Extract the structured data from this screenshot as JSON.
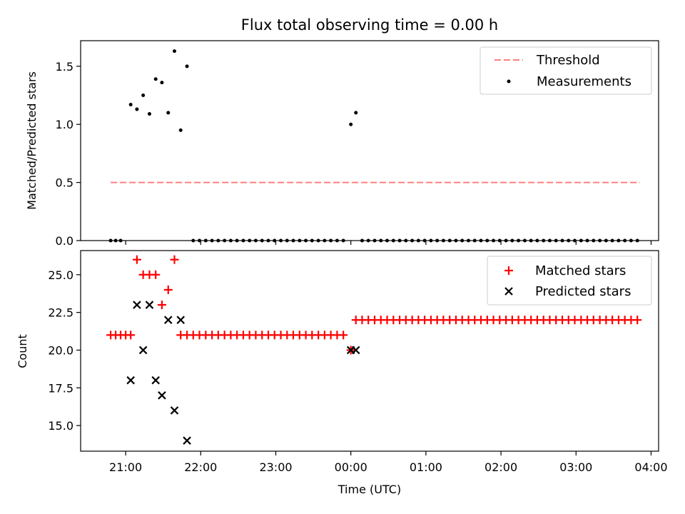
{
  "chart_data": [
    {
      "type": "scatter",
      "title": "Flux total observing time = 0.00 h",
      "xlabel": "",
      "ylabel": "Matched/Predicted stars",
      "xlim": [
        -0.6,
        7.1
      ],
      "ylim": [
        0.0,
        1.72
      ],
      "yticks": [
        0.0,
        0.5,
        1.0,
        1.5
      ],
      "xticks": [
        0,
        1,
        2,
        3,
        4,
        5,
        6,
        7
      ],
      "grid": false,
      "legend_position": "top-right",
      "threshold": {
        "name": "Threshold",
        "value": 0.5,
        "x_range": [
          -0.2,
          6.85
        ],
        "color": "#ff7f7f"
      },
      "series": [
        {
          "name": "Measurements",
          "color": "#000000",
          "x": [
            -0.2,
            -0.133,
            -0.067,
            0.067,
            0.15,
            0.233,
            0.317,
            0.4,
            0.483,
            0.567,
            0.65,
            0.733,
            0.817,
            0.9,
            0.983,
            1.067,
            1.15,
            1.233,
            1.317,
            1.4,
            1.483,
            1.567,
            1.65,
            1.733,
            1.817,
            1.9,
            1.983,
            2.067,
            2.15,
            2.233,
            2.317,
            2.4,
            2.483,
            2.567,
            2.65,
            2.733,
            2.817,
            2.9,
            3.0,
            3.067,
            3.15,
            3.233,
            3.317,
            3.4,
            3.483,
            3.567,
            3.65,
            3.733,
            3.817,
            3.9,
            3.983,
            4.067,
            4.15,
            4.233,
            4.317,
            4.4,
            4.483,
            4.567,
            4.65,
            4.733,
            4.817,
            4.9,
            4.983,
            5.067,
            5.15,
            5.233,
            5.317,
            5.4,
            5.483,
            5.567,
            5.65,
            5.733,
            5.817,
            5.9,
            5.983,
            6.067,
            6.15,
            6.233,
            6.317,
            6.4,
            6.483,
            6.567,
            6.65,
            6.733,
            6.817
          ],
          "y": [
            0.0,
            0.0,
            0.0,
            1.17,
            1.13,
            1.25,
            1.09,
            1.39,
            1.36,
            1.1,
            1.63,
            0.95,
            1.5,
            0.0,
            0.0,
            0.0,
            0.0,
            0.0,
            0.0,
            0.0,
            0.0,
            0.0,
            0.0,
            0.0,
            0.0,
            0.0,
            0.0,
            0.0,
            0.0,
            0.0,
            0.0,
            0.0,
            0.0,
            0.0,
            0.0,
            0.0,
            0.0,
            0.0,
            1.0,
            1.1,
            0.0,
            0.0,
            0.0,
            0.0,
            0.0,
            0.0,
            0.0,
            0.0,
            0.0,
            0.0,
            0.0,
            0.0,
            0.0,
            0.0,
            0.0,
            0.0,
            0.0,
            0.0,
            0.0,
            0.0,
            0.0,
            0.0,
            0.0,
            0.0,
            0.0,
            0.0,
            0.0,
            0.0,
            0.0,
            0.0,
            0.0,
            0.0,
            0.0,
            0.0,
            0.0,
            0.0,
            0.0,
            0.0,
            0.0,
            0.0,
            0.0,
            0.0,
            0.0,
            0.0,
            0.0
          ]
        }
      ]
    },
    {
      "type": "scatter",
      "title": "",
      "xlabel": "Time (UTC)",
      "ylabel": "Count",
      "xlim": [
        -0.6,
        7.1
      ],
      "ylim": [
        13.3,
        26.6
      ],
      "yticks": [
        15.0,
        17.5,
        20.0,
        22.5,
        25.0
      ],
      "xticks": [
        0,
        1,
        2,
        3,
        4,
        5,
        6,
        7
      ],
      "xtick_labels": [
        "21:00",
        "22:00",
        "23:00",
        "00:00",
        "01:00",
        "02:00",
        "03:00",
        "04:00"
      ],
      "grid": false,
      "legend_position": "top-right",
      "series": [
        {
          "name": "Matched stars",
          "marker": "plus",
          "color": "#ff0000",
          "x": [
            -0.2,
            -0.133,
            -0.067,
            0.0,
            0.067,
            0.15,
            0.233,
            0.317,
            0.4,
            0.483,
            0.567,
            0.65,
            0.733,
            0.817,
            0.9,
            0.983,
            1.067,
            1.15,
            1.233,
            1.317,
            1.4,
            1.483,
            1.567,
            1.65,
            1.733,
            1.817,
            1.9,
            1.983,
            2.067,
            2.15,
            2.233,
            2.317,
            2.4,
            2.483,
            2.567,
            2.65,
            2.733,
            2.817,
            2.9,
            3.0,
            3.067,
            3.15,
            3.233,
            3.317,
            3.4,
            3.483,
            3.567,
            3.65,
            3.733,
            3.817,
            3.9,
            3.983,
            4.067,
            4.15,
            4.233,
            4.317,
            4.4,
            4.483,
            4.567,
            4.65,
            4.733,
            4.817,
            4.9,
            4.983,
            5.067,
            5.15,
            5.233,
            5.317,
            5.4,
            5.483,
            5.567,
            5.65,
            5.733,
            5.817,
            5.9,
            5.983,
            6.067,
            6.15,
            6.233,
            6.317,
            6.4,
            6.483,
            6.567,
            6.65,
            6.733,
            6.817
          ],
          "y": [
            21,
            21,
            21,
            21,
            21,
            26,
            25,
            25,
            25,
            23,
            24,
            26,
            21,
            21,
            21,
            21,
            21,
            21,
            21,
            21,
            21,
            21,
            21,
            21,
            21,
            21,
            21,
            21,
            21,
            21,
            21,
            21,
            21,
            21,
            21,
            21,
            21,
            21,
            21,
            20,
            22,
            22,
            22,
            22,
            22,
            22,
            22,
            22,
            22,
            22,
            22,
            22,
            22,
            22,
            22,
            22,
            22,
            22,
            22,
            22,
            22,
            22,
            22,
            22,
            22,
            22,
            22,
            22,
            22,
            22,
            22,
            22,
            22,
            22,
            22,
            22,
            22,
            22,
            22,
            22,
            22,
            22,
            22,
            22,
            22,
            22
          ]
        },
        {
          "name": "Predicted stars",
          "marker": "x",
          "color": "#000000",
          "x": [
            0.067,
            0.15,
            0.233,
            0.317,
            0.4,
            0.483,
            0.567,
            0.65,
            0.733,
            0.817,
            3.0,
            3.067
          ],
          "y": [
            18,
            23,
            20,
            23,
            18,
            17,
            22,
            16,
            22,
            14,
            20,
            20
          ]
        }
      ]
    }
  ]
}
